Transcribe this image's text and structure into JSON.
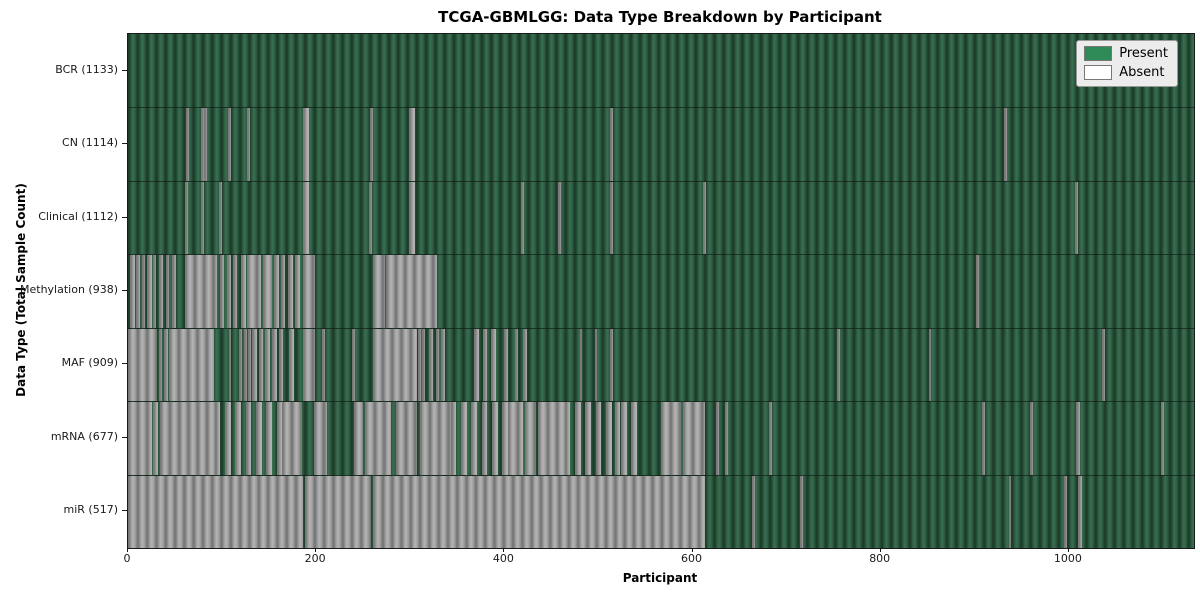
{
  "title": "TCGA-GBMLGG: Data Type Breakdown by Participant",
  "axes": {
    "xlabel": "Participant",
    "ylabel": "Data Type (Total Sample Count)"
  },
  "legend": {
    "items": [
      {
        "label": "Present",
        "color": "#2e8b57"
      },
      {
        "label": "Absent",
        "color": "#ffffff"
      }
    ]
  },
  "chart_data": {
    "type": "heatmap",
    "title": "TCGA-GBMLGG: Data Type Breakdown by Participant",
    "xlabel": "Participant",
    "ylabel": "Data Type (Total Sample Count)",
    "legend": [
      "Present",
      "Absent"
    ],
    "legend_position": "upper right",
    "grid": false,
    "present_color": "#2e8b57",
    "absent_color": "#ffffff",
    "n_participants": 1133,
    "x_ticks": [
      0,
      200,
      400,
      600,
      800,
      1000
    ],
    "rows": [
      {
        "name": "BCR",
        "count": 1133,
        "label": "BCR (1133)",
        "absent_intervals": []
      },
      {
        "name": "CN",
        "count": 1114,
        "label": "CN (1114)",
        "absent_intervals": [
          [
            62,
            64
          ],
          [
            78,
            80
          ],
          [
            81,
            83
          ],
          [
            106,
            108
          ],
          [
            127,
            129
          ],
          [
            186,
            191
          ],
          [
            257,
            259
          ],
          [
            299,
            304
          ],
          [
            512,
            514
          ],
          [
            931,
            933
          ]
        ]
      },
      {
        "name": "Clinical",
        "count": 1112,
        "label": "Clinical (1112)",
        "absent_intervals": [
          [
            61,
            63
          ],
          [
            78,
            80
          ],
          [
            97,
            99
          ],
          [
            186,
            191
          ],
          [
            256,
            258
          ],
          [
            299,
            304
          ],
          [
            418,
            420
          ],
          [
            457,
            459
          ],
          [
            512,
            514
          ],
          [
            611,
            613
          ],
          [
            1007,
            1009
          ]
        ]
      },
      {
        "name": "Methylation",
        "count": 938,
        "label": "Methylation (938)",
        "absent_intervals": [
          [
            2,
            6
          ],
          [
            9,
            12
          ],
          [
            15,
            17
          ],
          [
            20,
            24
          ],
          [
            27,
            29
          ],
          [
            33,
            36
          ],
          [
            40,
            43
          ],
          [
            47,
            50
          ],
          [
            61,
            94
          ],
          [
            98,
            101
          ],
          [
            105,
            108
          ],
          [
            112,
            115
          ],
          [
            120,
            124
          ],
          [
            126,
            140
          ],
          [
            143,
            152
          ],
          [
            155,
            160
          ],
          [
            163,
            166
          ],
          [
            170,
            174
          ],
          [
            178,
            182
          ],
          [
            186,
            198
          ],
          [
            260,
            272
          ],
          [
            274,
            327
          ],
          [
            901,
            903
          ]
        ]
      },
      {
        "name": "MAF",
        "count": 909,
        "label": "MAF (909)",
        "absent_intervals": [
          [
            0,
            30
          ],
          [
            33,
            35
          ],
          [
            38,
            42
          ],
          [
            44,
            90
          ],
          [
            107,
            109
          ],
          [
            118,
            120
          ],
          [
            123,
            125
          ],
          [
            128,
            130
          ],
          [
            132,
            136
          ],
          [
            139,
            143
          ],
          [
            146,
            150
          ],
          [
            153,
            157
          ],
          [
            160,
            164
          ],
          [
            171,
            175
          ],
          [
            186,
            198
          ],
          [
            206,
            208
          ],
          [
            238,
            240
          ],
          [
            260,
            306
          ],
          [
            308,
            310
          ],
          [
            313,
            315
          ],
          [
            320,
            323
          ],
          [
            327,
            330
          ],
          [
            333,
            336
          ],
          [
            368,
            372
          ],
          [
            377,
            381
          ],
          [
            386,
            390
          ],
          [
            400,
            403
          ],
          [
            411,
            414
          ],
          [
            420,
            423
          ],
          [
            480,
            482
          ],
          [
            496,
            498
          ],
          [
            512,
            514
          ],
          [
            754,
            756
          ],
          [
            851,
            853
          ],
          [
            1035,
            1037
          ]
        ]
      },
      {
        "name": "mRNA",
        "count": 677,
        "label": "mRNA (677)",
        "absent_intervals": [
          [
            0,
            24
          ],
          [
            27,
            31
          ],
          [
            34,
            92
          ],
          [
            92,
            97
          ],
          [
            103,
            108
          ],
          [
            114,
            119
          ],
          [
            125,
            130
          ],
          [
            136,
            141
          ],
          [
            147,
            152
          ],
          [
            158,
            163
          ],
          [
            164,
            184
          ],
          [
            198,
            211
          ],
          [
            240,
            249
          ],
          [
            252,
            279
          ],
          [
            285,
            306
          ],
          [
            310,
            343
          ],
          [
            343,
            348
          ],
          [
            354,
            359
          ],
          [
            365,
            370
          ],
          [
            376,
            381
          ],
          [
            387,
            392
          ],
          [
            398,
            403
          ],
          [
            404,
            419
          ],
          [
            422,
            433
          ],
          [
            436,
            464
          ],
          [
            464,
            469
          ],
          [
            475,
            480
          ],
          [
            486,
            491
          ],
          [
            497,
            502
          ],
          [
            508,
            513
          ],
          [
            518,
            522
          ],
          [
            524,
            529
          ],
          [
            535,
            540
          ],
          [
            566,
            587
          ],
          [
            590,
            612
          ],
          [
            625,
            627
          ],
          [
            635,
            637
          ],
          [
            681,
            683
          ],
          [
            908,
            910
          ],
          [
            959,
            961
          ],
          [
            1008,
            1011
          ],
          [
            1098,
            1100
          ]
        ]
      },
      {
        "name": "miR",
        "count": 517,
        "label": "miR (517)",
        "absent_intervals": [
          [
            0,
            185
          ],
          [
            188,
            257
          ],
          [
            260,
            612
          ],
          [
            663,
            665
          ],
          [
            714,
            716
          ],
          [
            936,
            938
          ],
          [
            995,
            997
          ],
          [
            1010,
            1013
          ]
        ]
      }
    ]
  }
}
